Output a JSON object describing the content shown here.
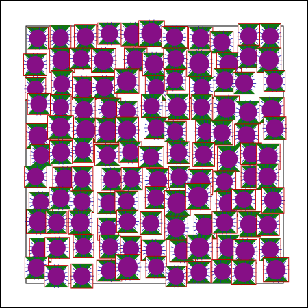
{
  "palette": {
    "background": "#ffffff",
    "frame": "#000000",
    "tile_border": "#c00000",
    "bowtie_fill": "#0f7a0f",
    "disk_fill": "#860f86",
    "ray_color": "#1f1fb0"
  },
  "motif": {
    "name": "tile-with-bowtie-and-disk",
    "rows": 11,
    "cols": 11
  }
}
